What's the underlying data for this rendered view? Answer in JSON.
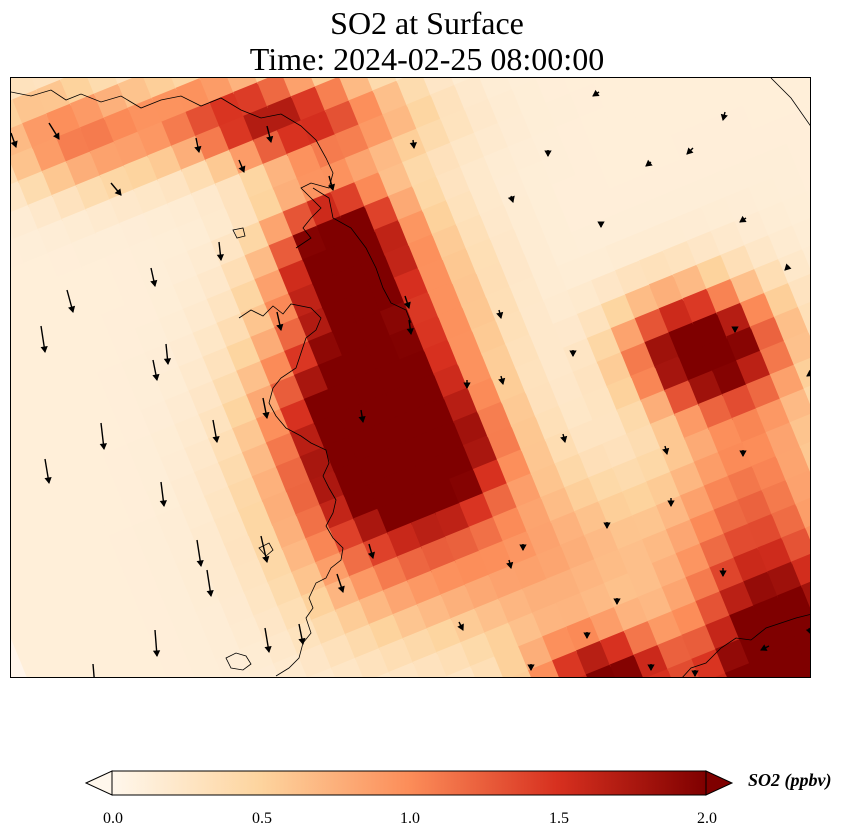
{
  "title": {
    "line1": "SO2 at Surface",
    "line2": "Time: 2024-02-25 08:00:00"
  },
  "colorbar": {
    "label": "SO2 (ppbv)",
    "min": 0.0,
    "max": 2.0,
    "extend": "both",
    "ticks": [
      "0.0",
      "0.5",
      "1.0",
      "1.5",
      "2.0"
    ],
    "colormap": "OrRd",
    "color_stops": [
      "#fff7ec",
      "#fdd49e",
      "#fc8d59",
      "#d7301f",
      "#7f0000"
    ]
  },
  "map": {
    "field": "SO2 concentration at surface (ppbv), gridded",
    "high_concentration_regions": [
      "center-left plume",
      "upper-right patch",
      "bottom-right corner"
    ],
    "wind_vectors": "black arrows, predominantly pointing south to south-southeast",
    "coastline": "thin black outline"
  }
}
